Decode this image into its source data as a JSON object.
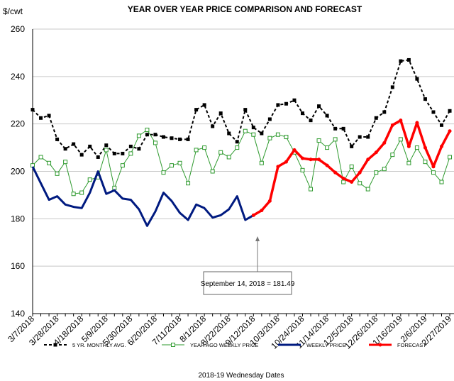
{
  "chart_data": {
    "type": "line",
    "title": "YEAR OVER YEAR PRICE COMPARISON AND FORECAST",
    "y_label": "$/cwt",
    "x_label": "2018-19 Wednesday Dates",
    "annotation": "September 14, 2018  = 181.49",
    "categories": [
      "3/7/2018",
      null,
      null,
      "3/28/2018",
      null,
      null,
      "4/18/2018",
      null,
      null,
      "5/9/2018",
      null,
      null,
      "5/30/2018",
      null,
      null,
      "6/20/2018",
      null,
      null,
      "7/11/2018",
      null,
      null,
      "8/1/2018",
      null,
      null,
      "8/22/2018",
      null,
      null,
      "9/12/2018",
      null,
      null,
      "10/3/2018",
      null,
      null,
      "10/24/2018",
      null,
      null,
      "11/14/2018",
      null,
      null,
      "12/5/2018",
      null,
      null,
      "12/26/2018",
      null,
      null,
      "1/16/2019",
      null,
      null,
      "2/6/2019",
      null,
      null,
      "2/27/2019"
    ],
    "ylim": [
      140,
      260
    ],
    "yticks": [
      140,
      160,
      180,
      200,
      220,
      240,
      260
    ],
    "grid": true,
    "series": [
      {
        "name": "5 YR. MONTHLY AVG.",
        "color": "#000000",
        "values": [
          226,
          222.5,
          223.5,
          213.5,
          209.5,
          211.5,
          207,
          210.5,
          206,
          211,
          207.5,
          207.5,
          210.5,
          209.5,
          215.5,
          215.5,
          214.5,
          214,
          213.5,
          213.5,
          226,
          228,
          219,
          224.5,
          216,
          212.5,
          226,
          218.5,
          216,
          222,
          228,
          228.5,
          230,
          224.5,
          221.5,
          227.5,
          223.5,
          218,
          218,
          210.5,
          214.5,
          214.5,
          222.5,
          225,
          235.5,
          246.5,
          247,
          239,
          230.5,
          225,
          219.5,
          225.5
        ]
      },
      {
        "name": "YEAR AGO WEEKLY PRICE",
        "color": "#2e9a2e",
        "values": [
          202.5,
          206,
          203.5,
          199,
          204,
          190.5,
          191,
          196.5,
          197.5,
          209,
          193,
          202.5,
          207.5,
          215,
          217.5,
          212,
          199.5,
          202.5,
          203.5,
          195,
          209,
          210,
          200,
          208,
          206,
          210,
          217,
          215.5,
          203.5,
          214,
          215.5,
          214.5,
          208,
          200.5,
          192.5,
          213,
          210,
          213.5,
          195.5,
          202,
          195,
          192.5,
          199.5,
          201,
          207,
          213.5,
          203.5,
          210,
          204,
          199.5,
          195.5,
          206
        ]
      },
      {
        "name": "WEEKLY PRICE",
        "color": "#001a80",
        "values": [
          202,
          195,
          188,
          189.5,
          186,
          185,
          184.5,
          191,
          200,
          190.5,
          192,
          188.5,
          188,
          184,
          177,
          183,
          191,
          187.5,
          182.5,
          179.5,
          186,
          184.5,
          180.5,
          181.5,
          184,
          189.5,
          179.5,
          181.49,
          null,
          null,
          null,
          null,
          null,
          null,
          null,
          null,
          null,
          null,
          null,
          null,
          null,
          null,
          null,
          null,
          null,
          null,
          null,
          null,
          null,
          null,
          null,
          null
        ]
      },
      {
        "name": "FORECAST",
        "color": "#ff0000",
        "values": [
          null,
          null,
          null,
          null,
          null,
          null,
          null,
          null,
          null,
          null,
          null,
          null,
          null,
          null,
          null,
          null,
          null,
          null,
          null,
          null,
          null,
          null,
          null,
          null,
          null,
          null,
          null,
          181.49,
          183.5,
          187.5,
          202,
          204,
          209,
          205.5,
          205,
          205,
          202.5,
          199.5,
          197,
          195.5,
          199.5,
          205,
          208,
          212,
          219.5,
          221.5,
          210.5,
          220.5,
          210,
          202,
          210.5,
          217
        ]
      }
    ]
  }
}
